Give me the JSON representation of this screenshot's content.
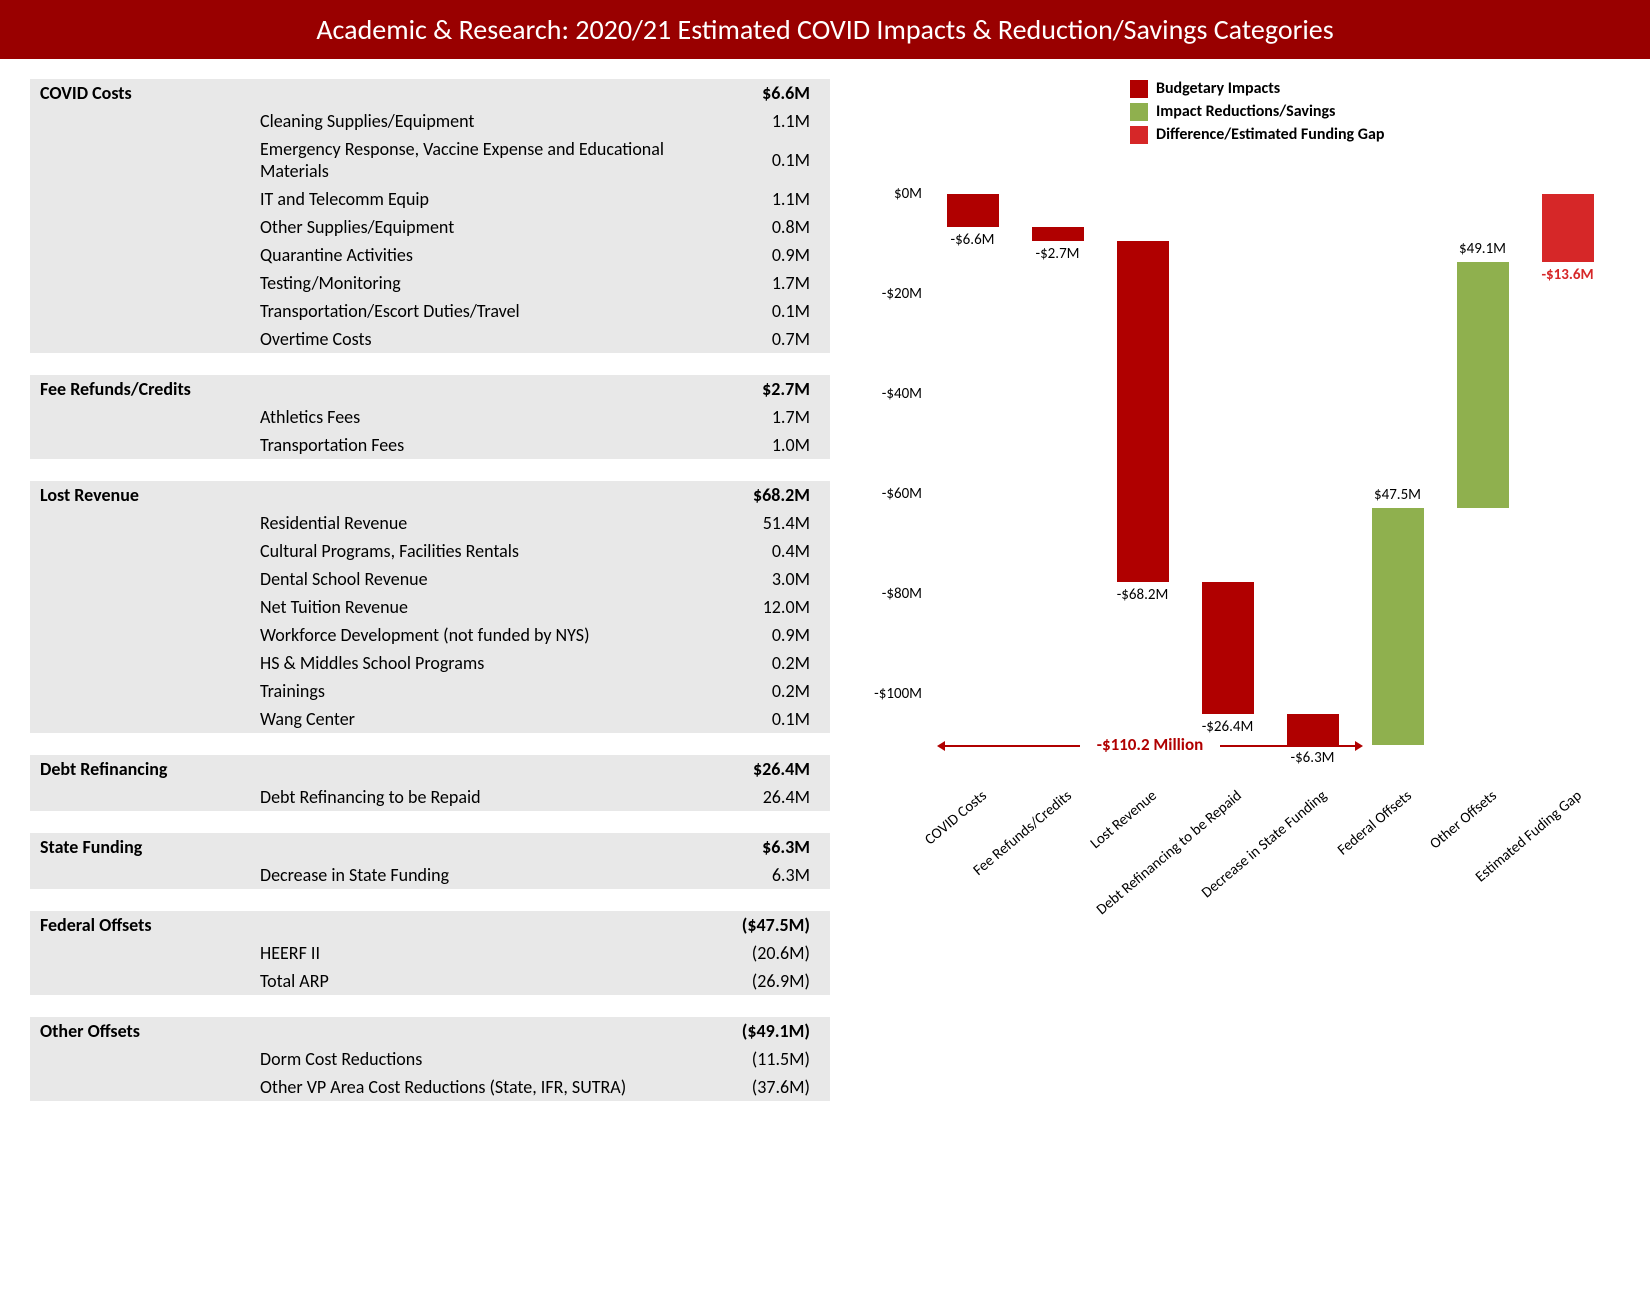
{
  "title": "Academic & Research: 2020/21 Estimated COVID Impacts & Reduction/Savings Categories",
  "colors": {
    "header_bg": "#990000",
    "impact": "#b00000",
    "savings": "#8fb04e",
    "gap": "#d62728",
    "row_bg": "#e8e8e8"
  },
  "table": {
    "sections": [
      {
        "header": {
          "label": "COVID Costs",
          "value": "$6.6M"
        },
        "rows": [
          {
            "desc": "Cleaning Supplies/Equipment",
            "value": "1.1M"
          },
          {
            "desc": "Emergency Response, Vaccine Expense and Educational Materials",
            "value": "0.1M"
          },
          {
            "desc": "IT and Telecomm Equip",
            "value": "1.1M"
          },
          {
            "desc": "Other Supplies/Equipment",
            "value": "0.8M"
          },
          {
            "desc": "Quarantine Activities",
            "value": "0.9M"
          },
          {
            "desc": "Testing/Monitoring",
            "value": "1.7M"
          },
          {
            "desc": "Transportation/Escort Duties/Travel",
            "value": "0.1M"
          },
          {
            "desc": "Overtime Costs",
            "value": "0.7M"
          }
        ]
      },
      {
        "header": {
          "label": "Fee Refunds/Credits",
          "value": "$2.7M"
        },
        "rows": [
          {
            "desc": "Athletics Fees",
            "value": "1.7M"
          },
          {
            "desc": "Transportation Fees",
            "value": "1.0M"
          }
        ]
      },
      {
        "header": {
          "label": "Lost Revenue",
          "value": "$68.2M"
        },
        "rows": [
          {
            "desc": "Residential Revenue",
            "value": "51.4M"
          },
          {
            "desc": "Cultural Programs, Facilities Rentals",
            "value": "0.4M"
          },
          {
            "desc": "Dental School Revenue",
            "value": "3.0M"
          },
          {
            "desc": "Net Tuition Revenue",
            "value": "12.0M"
          },
          {
            "desc": "Workforce Development (not funded by NYS)",
            "value": "0.9M"
          },
          {
            "desc": "HS & Middles School Programs",
            "value": "0.2M"
          },
          {
            "desc": "Trainings",
            "value": "0.2M"
          },
          {
            "desc": "Wang Center",
            "value": "0.1M"
          }
        ]
      },
      {
        "header": {
          "label": "Debt Refinancing",
          "value": "$26.4M"
        },
        "rows": [
          {
            "desc": "Debt Refinancing to be Repaid",
            "value": "26.4M"
          }
        ]
      },
      {
        "header": {
          "label": "State Funding",
          "value": "$6.3M"
        },
        "rows": [
          {
            "desc": "Decrease in State Funding",
            "value": "6.3M"
          }
        ]
      },
      {
        "header": {
          "label": "Federal Offsets",
          "value": "($47.5M)"
        },
        "rows": [
          {
            "desc": "HEERF II",
            "value": "(20.6M)"
          },
          {
            "desc": "Total ARP",
            "value": "(26.9M)"
          }
        ]
      },
      {
        "header": {
          "label": "Other Offsets",
          "value": "($49.1M)"
        },
        "rows": [
          {
            "desc": "Dorm Cost Reductions",
            "value": "(11.5M)"
          },
          {
            "desc": "Other VP Area Cost Reductions (State, IFR, SUTRA)",
            "value": "(37.6M)"
          }
        ]
      }
    ]
  },
  "chart": {
    "legend": [
      {
        "label": "Budgetary Impacts",
        "color": "#b00000"
      },
      {
        "label": "Impact Reductions/Savings",
        "color": "#8fb04e"
      },
      {
        "label": "Difference/Estimated Funding Gap",
        "color": "#d62728"
      }
    ],
    "y_axis": {
      "ticks": [
        {
          "value": 0,
          "label": "$0M"
        },
        {
          "value": -20,
          "label": "-$20M"
        },
        {
          "value": -40,
          "label": "-$40M"
        },
        {
          "value": -60,
          "label": "-$60M"
        },
        {
          "value": -80,
          "label": "-$80M"
        },
        {
          "value": -100,
          "label": "-$100M"
        }
      ],
      "min": -115,
      "max": 5
    },
    "bars": [
      {
        "x_label": "COVID Costs",
        "start": 0,
        "end": -6.6,
        "color": "#b00000",
        "value_label": "-$6.6M",
        "label_pos": "below"
      },
      {
        "x_label": "Fee Refunds/Credits",
        "start": -6.6,
        "end": -9.3,
        "color": "#b00000",
        "value_label": "-$2.7M",
        "label_pos": "below"
      },
      {
        "x_label": "Lost Revenue",
        "start": -9.3,
        "end": -77.5,
        "color": "#b00000",
        "value_label": "-$68.2M",
        "label_pos": "below"
      },
      {
        "x_label": "Debt Refinancing to be Repaid",
        "start": -77.5,
        "end": -103.9,
        "color": "#b00000",
        "value_label": "-$26.4M",
        "label_pos": "below"
      },
      {
        "x_label": "Decrease in State Funding",
        "start": -103.9,
        "end": -110.2,
        "color": "#b00000",
        "value_label": "-$6.3M",
        "label_pos": "below"
      },
      {
        "x_label": "Federal Offsets",
        "start": -110.2,
        "end": -62.7,
        "color": "#8fb04e",
        "value_label": "$47.5M",
        "label_pos": "above"
      },
      {
        "x_label": "Other Offsets",
        "start": -62.7,
        "end": -13.6,
        "color": "#8fb04e",
        "value_label": "$49.1M",
        "label_pos": "above"
      },
      {
        "x_label": "Estimated Fuding Gap",
        "start": 0,
        "end": -13.6,
        "color": "#d62728",
        "value_label": "-$13.6M",
        "label_pos": "below",
        "bold": true
      }
    ],
    "annotation": {
      "text": "-$110.2 Million",
      "y": -110.2
    }
  }
}
